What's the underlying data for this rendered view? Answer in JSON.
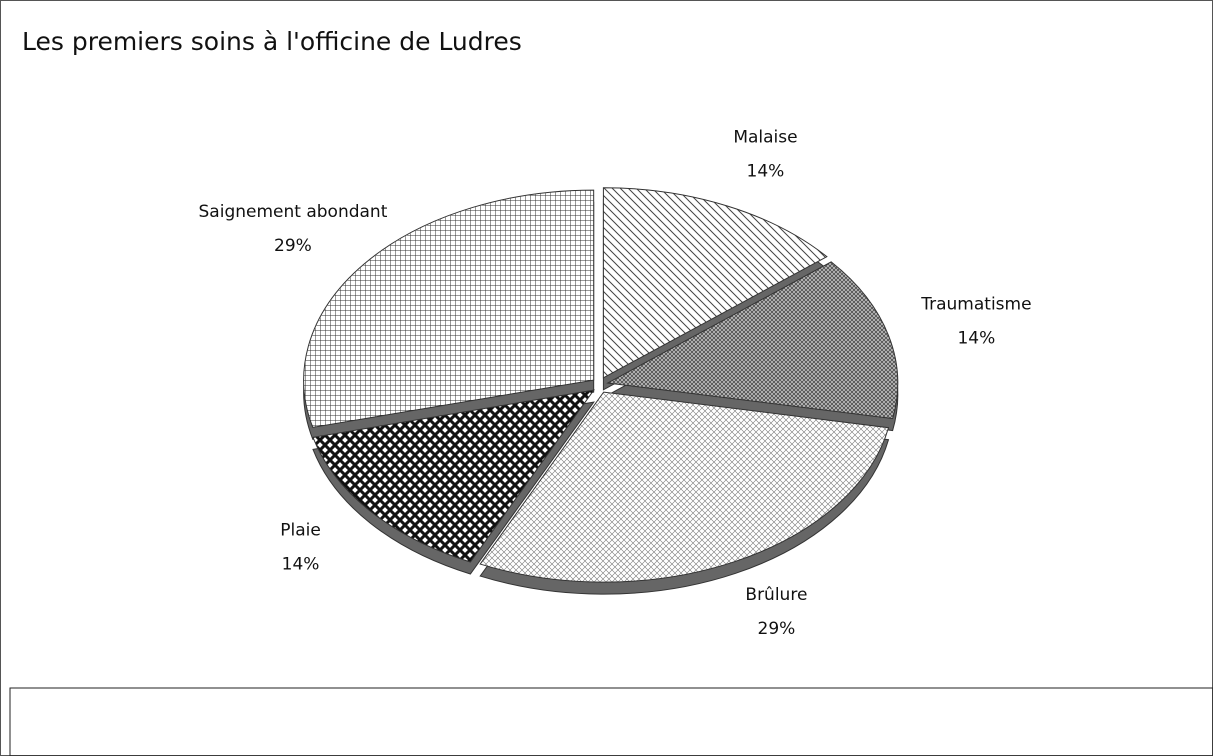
{
  "chart_data": {
    "type": "pie",
    "title": "Les premiers soins à l'officine de Ludres",
    "categories": [
      "Malaise",
      "Traumatisme",
      "Brûlure",
      "Plaie",
      "Saignement abondant"
    ],
    "values": [
      14,
      14,
      29,
      14,
      29
    ],
    "value_labels": [
      "14%",
      "14%",
      "29%",
      "14%",
      "29%"
    ],
    "colors": [
      "#444444",
      "#555555",
      "#777777",
      "#111111",
      "#333333"
    ]
  }
}
